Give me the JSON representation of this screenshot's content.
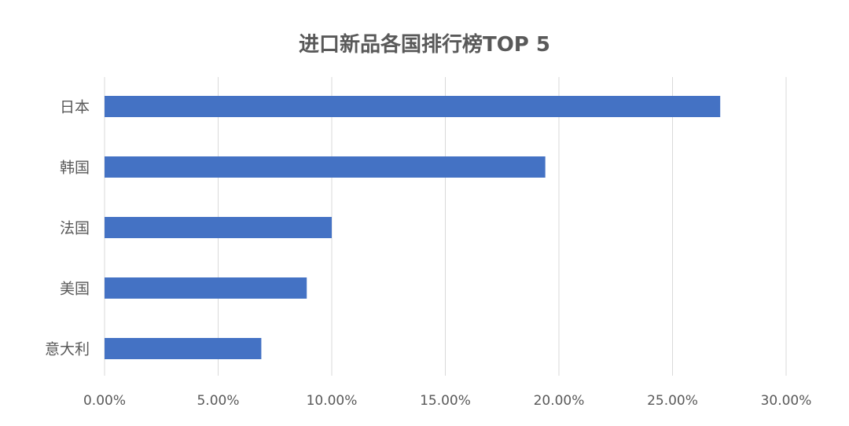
{
  "chart_data": {
    "type": "bar",
    "orientation": "horizontal",
    "title": "进口新品各国排行榜TOP 5",
    "categories": [
      "日本",
      "韩国",
      "法国",
      "美国",
      "意大利"
    ],
    "values": [
      0.271,
      0.194,
      0.1,
      0.089,
      0.069
    ],
    "xlim": [
      0,
      0.3
    ],
    "xticks": [
      0,
      0.05,
      0.1,
      0.15,
      0.2,
      0.25,
      0.3
    ],
    "xtick_labels": [
      "0.00%",
      "5.00%",
      "10.00%",
      "15.00%",
      "20.00%",
      "25.00%",
      "30.00%"
    ],
    "xlabel": "",
    "ylabel": "",
    "grid": "vertical",
    "legend": "none",
    "bar_color": "#4472c4"
  }
}
